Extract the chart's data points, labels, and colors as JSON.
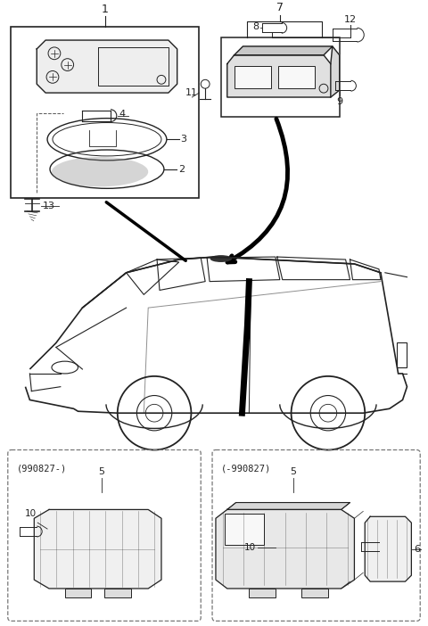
{
  "bg_color": "#ffffff",
  "line_color": "#222222",
  "dashed_color": "#555555"
}
